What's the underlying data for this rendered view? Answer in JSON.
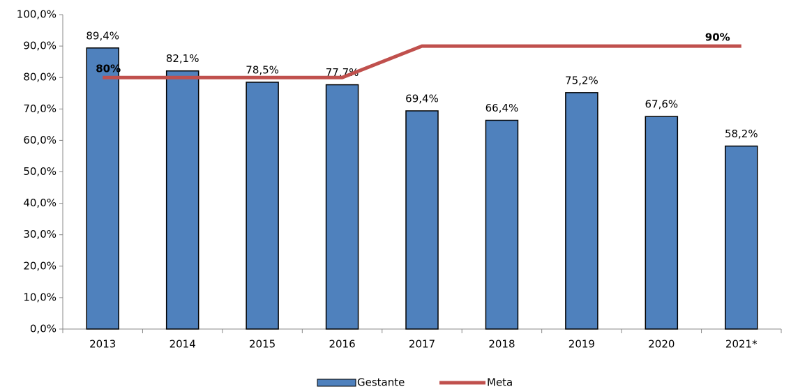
{
  "chart_data": {
    "type": "bar",
    "categories": [
      "2013",
      "2014",
      "2015",
      "2016",
      "2017",
      "2018",
      "2019",
      "2020",
      "2021*"
    ],
    "series": [
      {
        "name": "Gestante",
        "type": "bar",
        "color": "#4f81bd",
        "values": [
          89.4,
          82.1,
          78.5,
          77.7,
          69.4,
          66.4,
          75.2,
          67.6,
          58.2
        ],
        "value_labels": [
          "89,4%",
          "82,1%",
          "78,5%",
          "77,7%",
          "69,4%",
          "66,4%",
          "75,2%",
          "67,6%",
          "58,2%"
        ]
      },
      {
        "name": "Meta",
        "type": "line",
        "color": "#c0504d",
        "values": [
          80,
          80,
          80,
          80,
          90,
          90,
          90,
          90,
          90
        ],
        "value_labels": [
          "80%",
          null,
          null,
          null,
          null,
          null,
          null,
          null,
          "90%"
        ]
      }
    ],
    "ylim": [
      0,
      100
    ],
    "yticks": [
      {
        "value": 0,
        "label": "0,0%"
      },
      {
        "value": 10,
        "label": "10,0%"
      },
      {
        "value": 20,
        "label": "20,0%"
      },
      {
        "value": 30,
        "label": "30,0%"
      },
      {
        "value": 40,
        "label": "40,0%"
      },
      {
        "value": 50,
        "label": "50,0%"
      },
      {
        "value": 60,
        "label": "60,0%"
      },
      {
        "value": 70,
        "label": "70,0%"
      },
      {
        "value": 80,
        "label": "80,0%"
      },
      {
        "value": 90,
        "label": "90,0%"
      },
      {
        "value": 100,
        "label": "100,0%"
      }
    ],
    "grid": false,
    "legend": "bottom"
  }
}
